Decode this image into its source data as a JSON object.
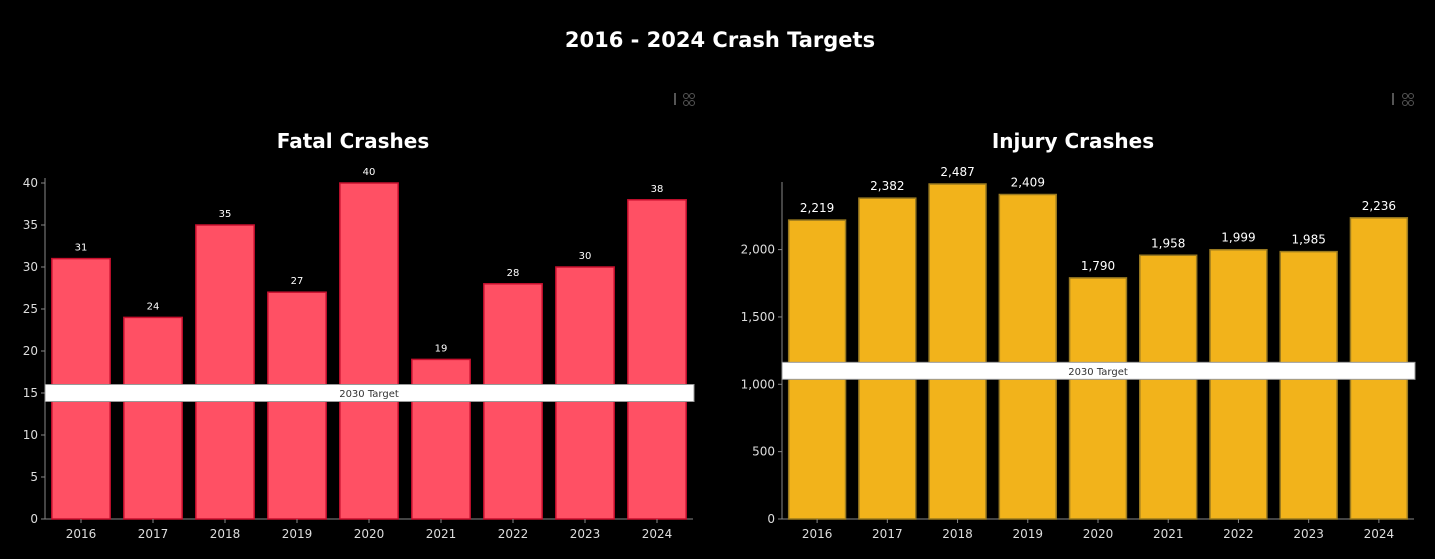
{
  "page_title": "2016 - 2024 Crash Targets",
  "chart_data": [
    {
      "type": "bar",
      "title": "Fatal Crashes",
      "categories": [
        "2016",
        "2017",
        "2018",
        "2019",
        "2020",
        "2021",
        "2022",
        "2023",
        "2024"
      ],
      "values": [
        31,
        24,
        35,
        27,
        40,
        19,
        28,
        30,
        38
      ],
      "data_labels": [
        "31",
        "24",
        "35",
        "27",
        "40",
        "19",
        "28",
        "30",
        "38"
      ],
      "yticks": [
        "0",
        "5",
        "10",
        "15",
        "20",
        "25",
        "30",
        "35",
        "40"
      ],
      "ylim": [
        0,
        40
      ],
      "target": {
        "label": "2030 Target",
        "value": 15
      },
      "bar_color": "#ff5064",
      "bar_stroke": "#c8102e",
      "grid": false
    },
    {
      "type": "bar",
      "title": "Injury Crashes",
      "categories": [
        "2016",
        "2017",
        "2018",
        "2019",
        "2020",
        "2021",
        "2022",
        "2023",
        "2024"
      ],
      "values": [
        2219,
        2382,
        2487,
        2409,
        1790,
        1958,
        1999,
        1985,
        2236
      ],
      "data_labels": [
        "2,219",
        "2,382",
        "2,487",
        "2,409",
        "1,790",
        "1,958",
        "1,999",
        "1,985",
        "2,236"
      ],
      "yticks": [
        "0",
        "500",
        "1,000",
        "1,500",
        "2,000"
      ],
      "ylim": [
        0,
        2500
      ],
      "target": {
        "label": "2030 Target",
        "value": 1100
      },
      "bar_color": "#f2b31b",
      "bar_stroke": "#9a7a20",
      "grid": false
    }
  ]
}
